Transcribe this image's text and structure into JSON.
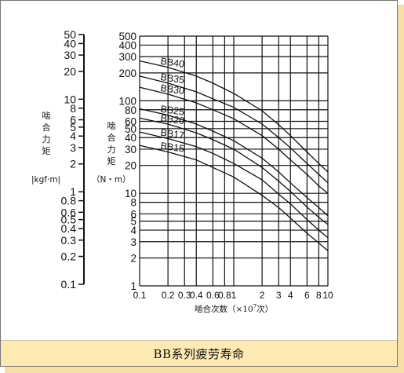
{
  "caption": "BB系列疲劳寿命",
  "left_axis": {
    "label": "啮合力矩",
    "unit": "|kgf·m|",
    "ticks": [
      50,
      40,
      30,
      20,
      10,
      8,
      6,
      5,
      4,
      3,
      2,
      1,
      0.8,
      0.6,
      0.5,
      0.4,
      0.3,
      0.2,
      0.1
    ],
    "tick_labels": [
      "50",
      "40",
      "30",
      "20",
      "10",
      "8",
      "6",
      "5",
      "4",
      "3",
      "2",
      "1",
      "0.8",
      "0.6",
      "0.5",
      "0.4",
      "0.3",
      "0.2",
      "0.1"
    ]
  },
  "chart_data": {
    "type": "line",
    "log_x": true,
    "log_y": true,
    "grid": true,
    "xlim": [
      0.1,
      10
    ],
    "ylim": [
      1,
      500
    ],
    "xlabel": "啮合次数",
    "xlabel_unit": "（×10",
    "xlabel_unit_exp": "7",
    "xlabel_unit_suffix": "次）",
    "ylabel": "啮合力矩",
    "ylabel_unit": "（N・m）",
    "x_ticks": [
      0.1,
      0.2,
      0.3,
      0.4,
      0.6,
      0.8,
      1,
      2,
      3,
      4,
      6,
      8,
      10
    ],
    "x_tick_labels": [
      "0.1",
      "0.2",
      "0.3",
      "0.4",
      "0.6",
      "0.8",
      "1",
      "2",
      "3",
      "4",
      "6",
      "8",
      "10"
    ],
    "y_ticks": [
      1,
      2,
      3,
      4,
      5,
      6,
      8,
      10,
      20,
      30,
      40,
      50,
      60,
      80,
      100,
      200,
      300,
      400,
      500
    ],
    "y_tick_labels": [
      "1",
      "2",
      "3",
      "4",
      "5",
      "6",
      "8",
      "10",
      "20",
      "30",
      "40",
      "50",
      "60",
      "80",
      "100",
      "200",
      "300",
      "400",
      "500"
    ],
    "series": [
      {
        "name": "BB40",
        "x": [
          0.1,
          0.2,
          0.4,
          0.6,
          1,
          2,
          3,
          4,
          6,
          8,
          10
        ],
        "y": [
          270,
          230,
          185,
          155,
          120,
          78,
          55,
          42,
          28,
          21,
          17
        ]
      },
      {
        "name": "BB35",
        "x": [
          0.1,
          0.2,
          0.4,
          0.6,
          1,
          2,
          3,
          4,
          6,
          8,
          10
        ],
        "y": [
          185,
          155,
          125,
          105,
          85,
          56,
          40,
          31,
          21,
          16,
          13
        ]
      },
      {
        "name": "BB30",
        "x": [
          0.1,
          0.2,
          0.4,
          0.6,
          1,
          2,
          3,
          4,
          6,
          8,
          10
        ],
        "y": [
          140,
          118,
          95,
          80,
          64,
          42,
          30,
          23,
          16,
          12,
          10
        ]
      },
      {
        "name": "BB25",
        "x": [
          0.1,
          0.2,
          0.4,
          0.6,
          1,
          2,
          3,
          4,
          6,
          8,
          10
        ],
        "y": [
          82,
          70,
          56,
          47,
          37,
          24,
          17,
          13,
          9,
          7,
          5.7
        ]
      },
      {
        "name": "BB20",
        "x": [
          0.1,
          0.2,
          0.4,
          0.6,
          1,
          2,
          3,
          4,
          6,
          8,
          10
        ],
        "y": [
          65,
          56,
          45,
          38,
          30,
          19,
          13.5,
          10.5,
          7.1,
          5.5,
          4.6
        ]
      },
      {
        "name": "BB17",
        "x": [
          0.1,
          0.2,
          0.4,
          0.6,
          1,
          2,
          3,
          4,
          6,
          8,
          10
        ],
        "y": [
          46,
          39,
          32,
          27,
          21,
          14,
          9.8,
          7.7,
          5.2,
          4,
          3.3
        ]
      },
      {
        "name": "BB15",
        "x": [
          0.1,
          0.2,
          0.4,
          0.6,
          1,
          2,
          3,
          4,
          6,
          8,
          10
        ],
        "y": [
          33,
          28,
          23,
          19,
          15,
          9.5,
          7,
          5.4,
          3.7,
          2.9,
          2.4
        ]
      }
    ]
  }
}
